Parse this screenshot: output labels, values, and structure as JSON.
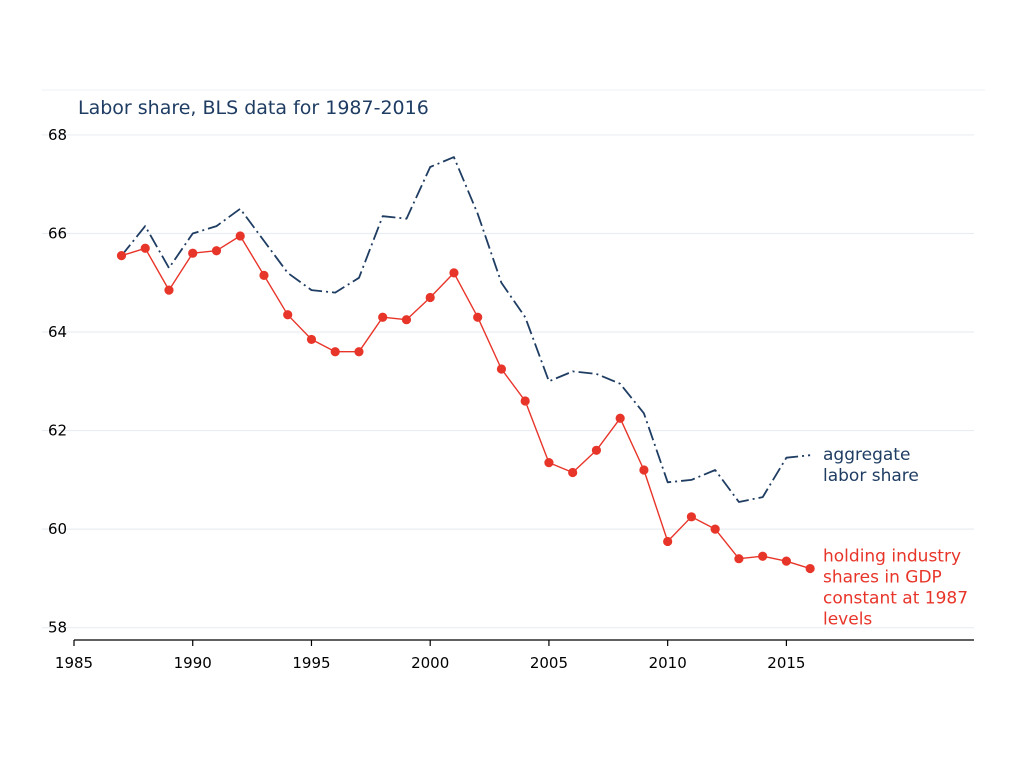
{
  "chart_data": {
    "type": "line",
    "title": "Labor share, BLS data for 1987-2016",
    "xlabel": "",
    "ylabel": "",
    "x_ticks": [
      "1985",
      "1990",
      "1995",
      "2000",
      "2005",
      "2010",
      "2015"
    ],
    "y_ticks": [
      "58",
      "60",
      "62",
      "64",
      "66",
      "68"
    ],
    "xlim": [
      1985,
      2022.9
    ],
    "ylim": [
      57.75,
      68.1
    ],
    "grid": true,
    "legend": "none",
    "x": [
      1987,
      1988,
      1989,
      1990,
      1991,
      1992,
      1993,
      1994,
      1995,
      1996,
      1997,
      1998,
      1999,
      2000,
      2001,
      2002,
      2003,
      2004,
      2005,
      2006,
      2007,
      2008,
      2009,
      2010,
      2011,
      2012,
      2013,
      2014,
      2015,
      2016
    ],
    "series": [
      {
        "name_lines": [
          "aggregate",
          "labor share"
        ],
        "color": "#1f3d63",
        "line_style": "dash-dot",
        "markers": false,
        "values": [
          65.55,
          66.15,
          65.3,
          66.0,
          66.15,
          66.5,
          65.85,
          65.2,
          64.85,
          64.8,
          65.1,
          66.35,
          66.3,
          67.35,
          67.55,
          66.4,
          65.0,
          64.3,
          63.0,
          63.2,
          63.15,
          62.95,
          62.35,
          60.95,
          61.0,
          61.2,
          60.55,
          60.65,
          61.45,
          61.5
        ]
      },
      {
        "name_lines": [
          "holding industry",
          "shares in GDP",
          "constant at 1987",
          "levels"
        ],
        "color": "#e8352a",
        "line_style": "solid",
        "markers": true,
        "values": [
          65.55,
          65.7,
          64.85,
          65.6,
          65.65,
          65.95,
          65.15,
          64.35,
          63.85,
          63.6,
          63.6,
          64.3,
          64.25,
          64.7,
          65.2,
          64.3,
          63.25,
          62.6,
          61.35,
          61.15,
          61.6,
          62.25,
          61.2,
          59.75,
          60.25,
          60.0,
          59.4,
          59.45,
          59.35,
          59.2
        ]
      }
    ]
  }
}
